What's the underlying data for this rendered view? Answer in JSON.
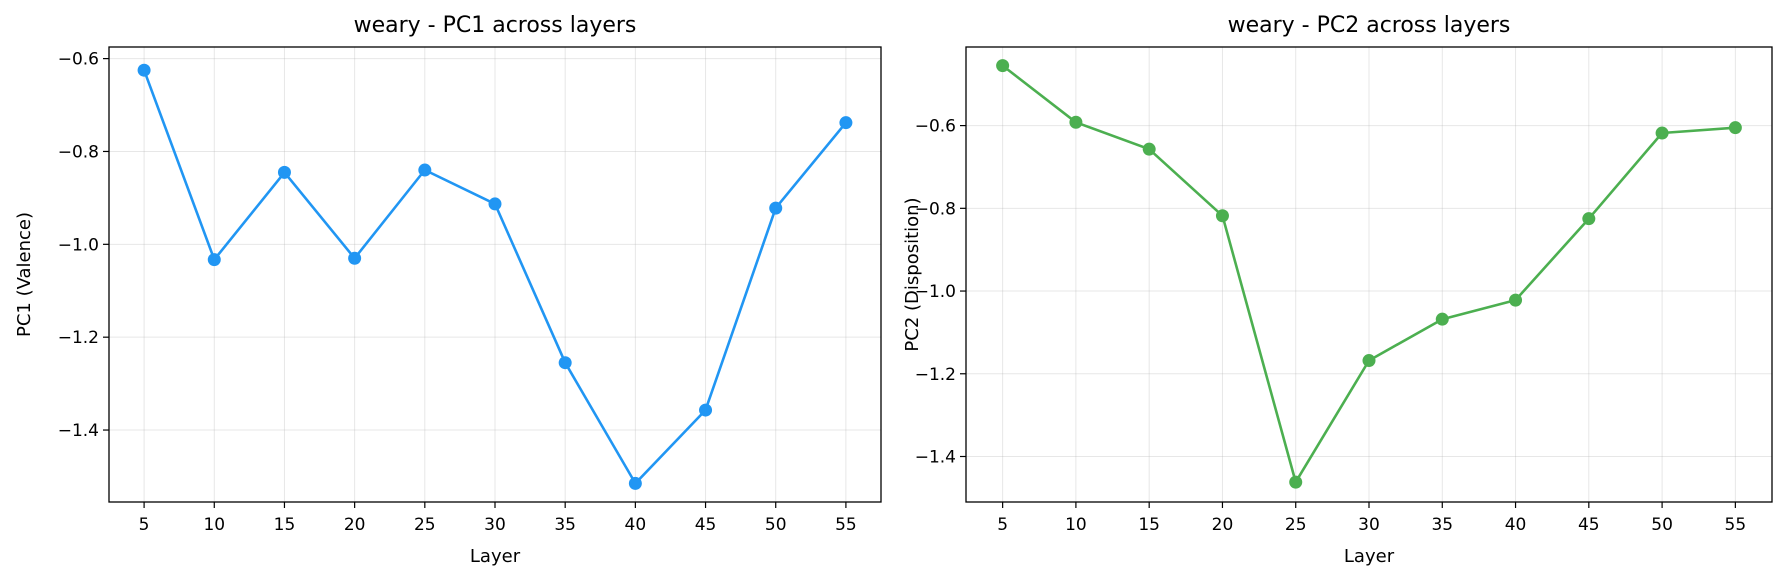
{
  "chart_data": [
    {
      "type": "line",
      "title": "weary - PC1 across layers",
      "xlabel": "Layer",
      "ylabel": "PC1 (Valence)",
      "color": "#2196F3",
      "grid": true,
      "x": [
        5,
        10,
        15,
        20,
        25,
        30,
        35,
        40,
        45,
        50,
        55
      ],
      "xticks": [
        "5",
        "10",
        "15",
        "20",
        "25",
        "30",
        "35",
        "40",
        "45",
        "50",
        "55"
      ],
      "xlim": [
        2.5,
        57.5
      ],
      "yticks": [
        -0.6,
        -0.8,
        -1.0,
        -1.2,
        -1.4
      ],
      "ytick_labels": [
        "−0.6",
        "−0.8",
        "−1.0",
        "−1.2",
        "−1.4"
      ],
      "ylim": [
        -1.555,
        -0.575
      ],
      "series": [
        {
          "values": [
            -0.625,
            -1.033,
            -0.845,
            -1.03,
            -0.84,
            -0.913,
            -1.255,
            -1.515,
            -1.357,
            -0.922,
            -0.738
          ]
        }
      ]
    },
    {
      "type": "line",
      "title": "weary - PC2 across layers",
      "xlabel": "Layer",
      "ylabel": "PC2 (Disposition)",
      "color": "#4CAF50",
      "grid": true,
      "x": [
        5,
        10,
        15,
        20,
        25,
        30,
        35,
        40,
        45,
        50,
        55
      ],
      "xticks": [
        "5",
        "10",
        "15",
        "20",
        "25",
        "30",
        "35",
        "40",
        "45",
        "50",
        "55"
      ],
      "xlim": [
        2.5,
        57.5
      ],
      "yticks": [
        -0.6,
        -0.8,
        -1.0,
        -1.2,
        -1.4
      ],
      "ytick_labels": [
        "−0.6",
        "−0.8",
        "−1.0",
        "−1.2",
        "−1.4"
      ],
      "ylim": [
        -1.51,
        -0.41
      ],
      "series": [
        {
          "values": [
            -0.455,
            -0.592,
            -0.657,
            -0.818,
            -1.462,
            -1.168,
            -1.068,
            -1.022,
            -0.825,
            -0.618,
            -0.605
          ]
        }
      ]
    }
  ]
}
